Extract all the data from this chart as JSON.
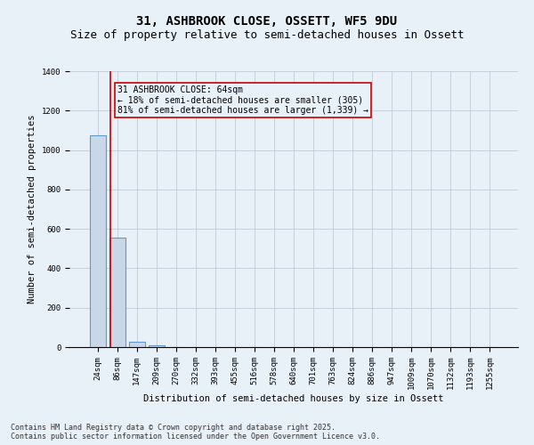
{
  "title_line1": "31, ASHBROOK CLOSE, OSSETT, WF5 9DU",
  "title_line2": "Size of property relative to semi-detached houses in Ossett",
  "xlabel": "Distribution of semi-detached houses by size in Ossett",
  "ylabel": "Number of semi-detached properties",
  "categories": [
    "24sqm",
    "86sqm",
    "147sqm",
    "209sqm",
    "270sqm",
    "332sqm",
    "393sqm",
    "455sqm",
    "516sqm",
    "578sqm",
    "640sqm",
    "701sqm",
    "763sqm",
    "824sqm",
    "886sqm",
    "947sqm",
    "1009sqm",
    "1070sqm",
    "1132sqm",
    "1193sqm",
    "1255sqm"
  ],
  "values": [
    1075,
    555,
    28,
    10,
    0,
    0,
    0,
    0,
    0,
    0,
    0,
    0,
    0,
    0,
    0,
    0,
    0,
    0,
    0,
    0,
    0
  ],
  "bar_color": "#c8d8e8",
  "bar_edge_color": "#5b9bd5",
  "property_size_label": "31 ASHBROOK CLOSE: 64sqm",
  "annotation_line1": "← 18% of semi-detached houses are smaller (305)",
  "annotation_line2": "81% of semi-detached houses are larger (1,339) →",
  "vline_color": "#cc0000",
  "annotation_box_color": "#cc0000",
  "bg_color": "#e8f0f8",
  "grid_color": "#c0ccd8",
  "ylim": [
    0,
    1400
  ],
  "footer_line1": "Contains HM Land Registry data © Crown copyright and database right 2025.",
  "footer_line2": "Contains public sector information licensed under the Open Government Licence v3.0.",
  "title_fontsize": 10,
  "subtitle_fontsize": 9,
  "axis_label_fontsize": 7.5,
  "tick_fontsize": 6.5,
  "annotation_fontsize": 7,
  "footer_fontsize": 6
}
